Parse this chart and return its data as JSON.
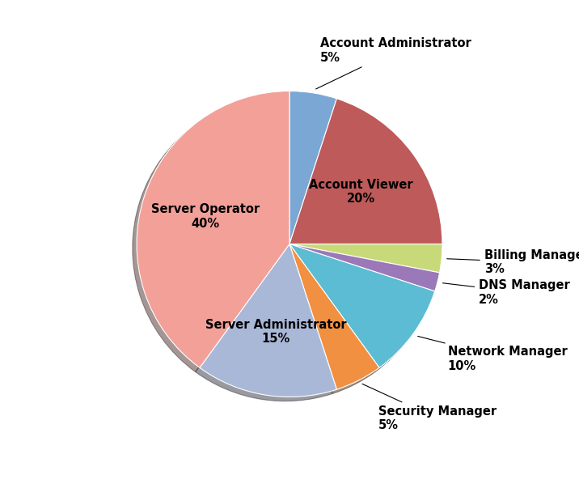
{
  "labels": [
    "Account Administrator",
    "Account Viewer",
    "Billing Manager",
    "DNS Manager",
    "Network Manager",
    "Security Manager",
    "Server Administrator",
    "Server Operator"
  ],
  "values": [
    5,
    20,
    3,
    2,
    10,
    5,
    15,
    40
  ],
  "colors": [
    "#7ba7d4",
    "#be5a5a",
    "#c8d97a",
    "#9b78b8",
    "#5bbcd4",
    "#f09040",
    "#aab8d8",
    "#f2a098"
  ],
  "shadow": true,
  "startangle": 90,
  "background_color": "#ffffff",
  "label_fontsize": 10.5,
  "inside_threshold": 15
}
